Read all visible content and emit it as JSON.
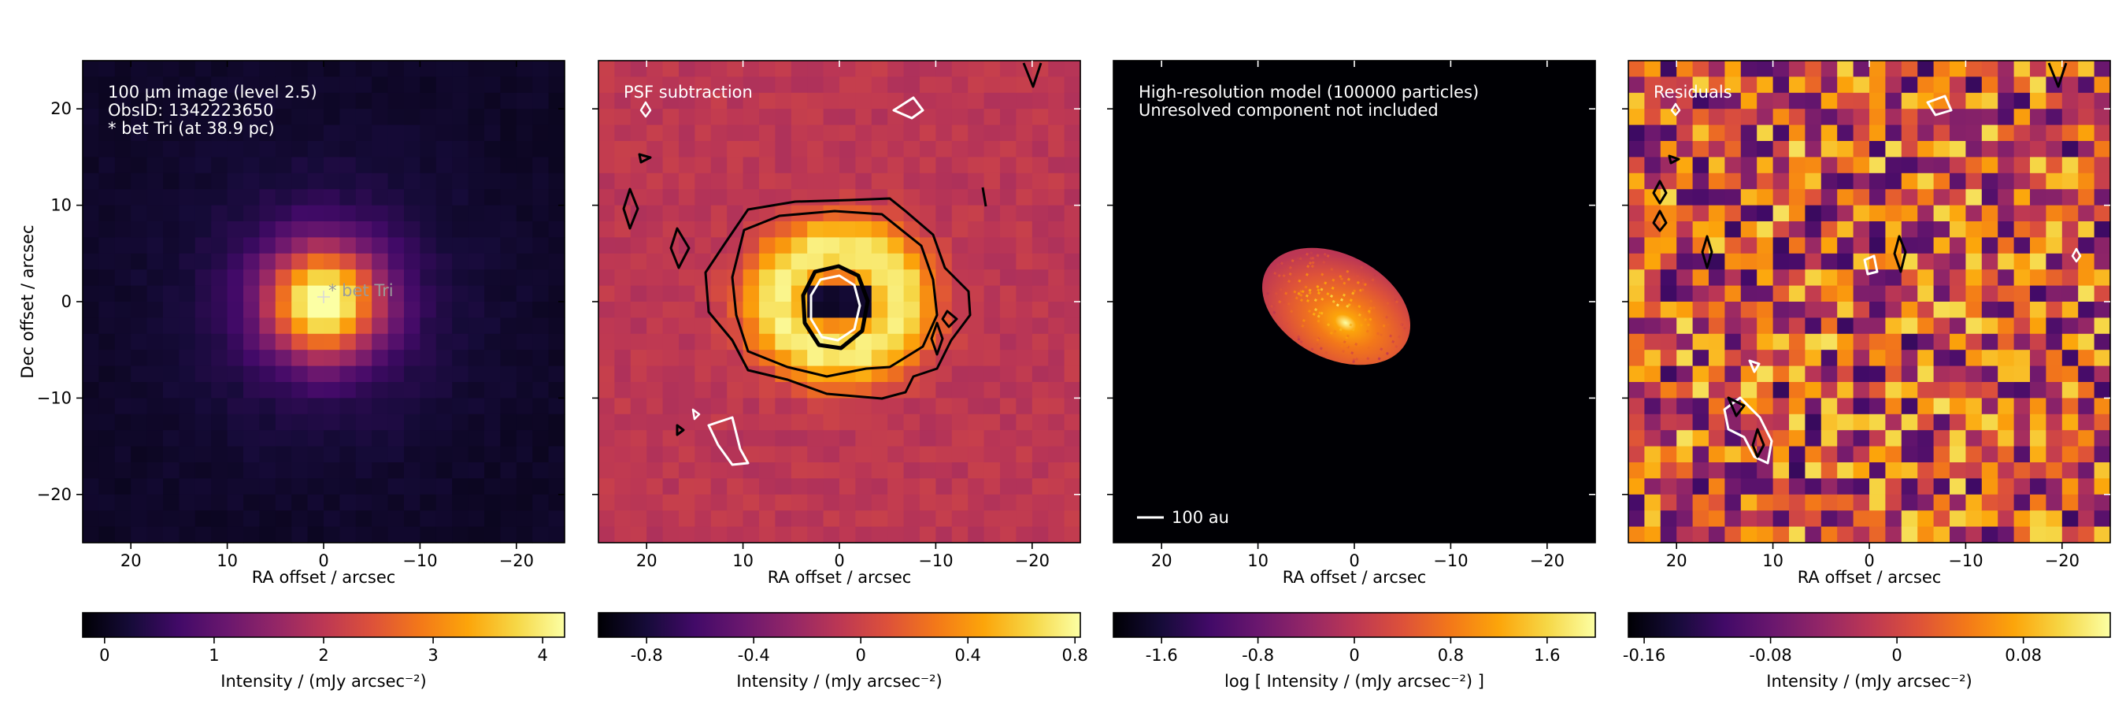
{
  "chart_data": [
    {
      "type": "heatmap",
      "panel_lines": [
        "100 µm image (level 2.5)",
        "ObsID: 1342223650",
        "* bet Tri (at 38.9 pc)"
      ],
      "star_marker_label": "* bet Tri",
      "xlabel": "RA offset / arcsec",
      "ylabel": "Dec offset / arcsec",
      "xlim": [
        25,
        -25
      ],
      "ylim": [
        -25,
        25
      ],
      "xticks": [
        20,
        10,
        0,
        -10,
        -20
      ],
      "yticks": [
        20,
        10,
        0,
        -10,
        -20
      ],
      "xtick_labels": [
        "20",
        "10",
        "0",
        "−10",
        "−20"
      ],
      "ytick_labels": [
        "20",
        "10",
        "0",
        "−10",
        "−20"
      ],
      "colormap": "inferno",
      "colorbar": {
        "label": "Intensity / (mJy arcsec⁻²)",
        "range": [
          -0.2,
          4.2
        ],
        "ticks": [
          0,
          1,
          2,
          3,
          4
        ],
        "tick_labels": [
          "0",
          "1",
          "2",
          "3",
          "4"
        ]
      }
    },
    {
      "type": "heatmap",
      "panel_lines": [
        "PSF subtraction"
      ],
      "xlabel": "RA offset / arcsec",
      "xlim": [
        25,
        -25
      ],
      "ylim": [
        -25,
        25
      ],
      "xticks": [
        20,
        10,
        0,
        -10,
        -20
      ],
      "xtick_labels": [
        "20",
        "10",
        "0",
        "−10",
        "−20"
      ],
      "colormap": "inferno",
      "contours": "black: positive, white: negative",
      "colorbar": {
        "label": "Intensity / (mJy arcsec⁻²)",
        "range": [
          -0.98,
          0.82
        ],
        "ticks": [
          -0.8,
          -0.4,
          0,
          0.4,
          0.8
        ],
        "tick_labels": [
          "-0.8",
          "-0.4",
          "0",
          "0.4",
          "0.8"
        ]
      }
    },
    {
      "type": "heatmap",
      "panel_lines": [
        "High-resolution model (100000 particles)",
        "Unresolved component not included"
      ],
      "scalebar_label": "100 au",
      "xlabel": "RA offset / arcsec",
      "xlim": [
        25,
        -25
      ],
      "ylim": [
        -25,
        25
      ],
      "xticks": [
        20,
        10,
        0,
        -10,
        -20
      ],
      "xtick_labels": [
        "20",
        "10",
        "0",
        "−10",
        "−20"
      ],
      "colormap": "inferno",
      "colorbar": {
        "label": "log [ Intensity / (mJy arcsec⁻²) ]",
        "range": [
          -2.0,
          2.0
        ],
        "ticks": [
          -1.6,
          -0.8,
          0,
          0.8,
          1.6
        ],
        "tick_labels": [
          "-1.6",
          "-0.8",
          "0",
          "0.8",
          "1.6"
        ]
      }
    },
    {
      "type": "heatmap",
      "panel_lines": [
        "Residuals"
      ],
      "xlabel": "RA offset / arcsec",
      "xlim": [
        25,
        -25
      ],
      "ylim": [
        -25,
        25
      ],
      "xticks": [
        20,
        10,
        0,
        -10,
        -20
      ],
      "xtick_labels": [
        "20",
        "10",
        "0",
        "−10",
        "−20"
      ],
      "colormap": "inferno",
      "contours": "black: positive, white: negative",
      "colorbar": {
        "label": "Intensity / (mJy arcsec⁻²)",
        "range": [
          -0.17,
          0.135
        ],
        "ticks": [
          -0.16,
          -0.08,
          0,
          0.08
        ],
        "tick_labels": [
          "-0.16",
          "-0.08",
          "0",
          "0.08"
        ]
      }
    }
  ]
}
